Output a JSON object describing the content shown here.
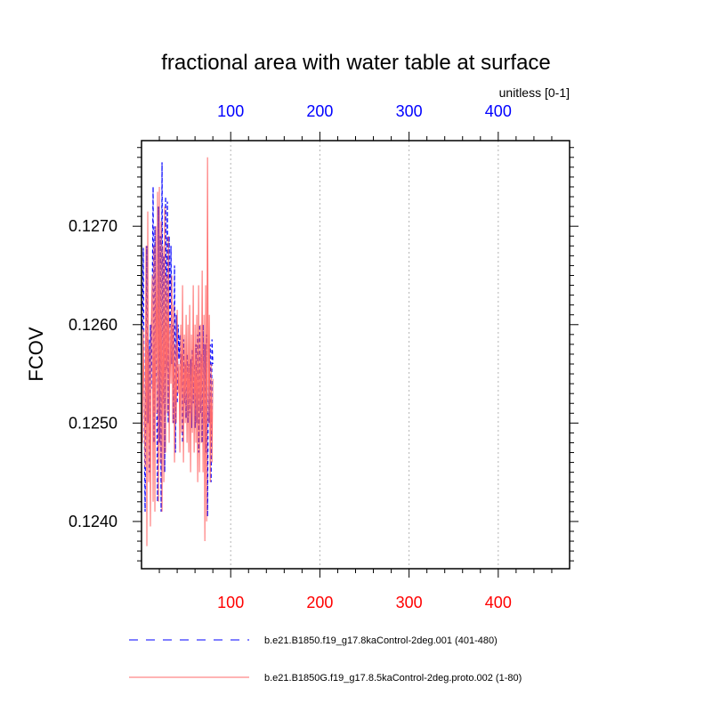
{
  "chart_data": {
    "type": "line",
    "title": "fractional area with water table at surface",
    "units_label": "unitless [0-1]",
    "ylabel": "FCOV",
    "xlabel": "",
    "xlim": [
      0,
      480
    ],
    "ylim": [
      0.12352,
      0.12787
    ],
    "y_ticks": [
      0.124,
      0.125,
      0.126,
      0.127
    ],
    "y_tick_labels": [
      "0.1240",
      "0.1250",
      "0.1260",
      "0.1270"
    ],
    "x_ticks": [
      100,
      200,
      300,
      400
    ],
    "top_axis": {
      "tick_labels": [
        "100",
        "200",
        "300",
        "400"
      ],
      "color": "#0000ff"
    },
    "bottom_axis": {
      "tick_labels": [
        "100",
        "200",
        "300",
        "400"
      ],
      "color": "#ff0000"
    },
    "grid": {
      "vertical": true,
      "horizontal": false,
      "style": "dotted"
    },
    "legend_position": "bottom",
    "series": [
      {
        "name": "b.e21.B1850.f19_g17.8kaControl-2deg.001 (401-480)",
        "color": "#0000ff",
        "style": "dashed",
        "axis": "top",
        "values": [
          0.12595,
          0.12678,
          0.12515,
          0.1241,
          0.1256,
          0.1268,
          0.125,
          0.12585,
          0.1245,
          0.126,
          0.12535,
          0.1262,
          0.1274,
          0.1248,
          0.127,
          0.1256,
          0.1254,
          0.1242,
          0.1272,
          0.1248,
          0.1269,
          0.1241,
          0.12765,
          0.1252,
          0.1267,
          0.1245,
          0.1273,
          0.12555,
          0.12725,
          0.125,
          0.1269,
          0.1258,
          0.1268,
          0.1256,
          0.126,
          0.125,
          0.1266,
          0.1247,
          0.1261,
          0.1252,
          0.126,
          0.12565,
          0.1259,
          0.1254,
          0.1257,
          0.1248,
          0.12585,
          0.1252,
          0.1256,
          0.12505,
          0.1257,
          0.125,
          0.1256,
          0.1251,
          0.12565,
          0.12495,
          0.12575,
          0.1252,
          0.1256,
          0.12495,
          0.1258,
          0.125,
          0.1259,
          0.1247,
          0.126,
          0.1251,
          0.1257,
          0.1248,
          0.126,
          0.125,
          0.1258,
          0.1247,
          0.1259,
          0.12405,
          0.1256,
          0.125,
          0.1258,
          0.1244,
          0.12585,
          0.1256
        ]
      },
      {
        "name": "b.e21.B1850G.f19_g17.8.5kaControl-2deg.proto.002 (1-80)",
        "color": "#ff6a6a",
        "style": "solid",
        "axis": "bottom",
        "values": [
          0.1248,
          0.12595,
          0.1252,
          0.12455,
          0.1268,
          0.12375,
          0.12715,
          0.1244,
          0.12575,
          0.12395,
          0.126,
          0.1265,
          0.1242,
          0.1268,
          0.1241,
          0.127,
          0.1251,
          0.12735,
          0.1242,
          0.1274,
          0.1246,
          0.12705,
          0.1241,
          0.1268,
          0.1244,
          0.1272,
          0.1247,
          0.1265,
          0.1251,
          0.1269,
          0.1248,
          0.126,
          0.1254,
          0.1265,
          0.125,
          0.1262,
          0.1246,
          0.1258,
          0.125,
          0.12615,
          0.1253,
          0.1256,
          0.1247,
          0.126,
          0.1249,
          0.1264,
          0.1246,
          0.1259,
          0.125,
          0.1261,
          0.1248,
          0.126,
          0.1247,
          0.1262,
          0.1245,
          0.1259,
          0.1249,
          0.1264,
          0.1247,
          0.126,
          0.1248,
          0.1261,
          0.1244,
          0.1264,
          0.1245,
          0.126,
          0.1248,
          0.12655,
          0.1245,
          0.1261,
          0.1238,
          0.1264,
          0.124,
          0.1277,
          0.125,
          0.1261,
          0.1244,
          0.1256,
          0.1246,
          0.12545
        ]
      }
    ]
  }
}
